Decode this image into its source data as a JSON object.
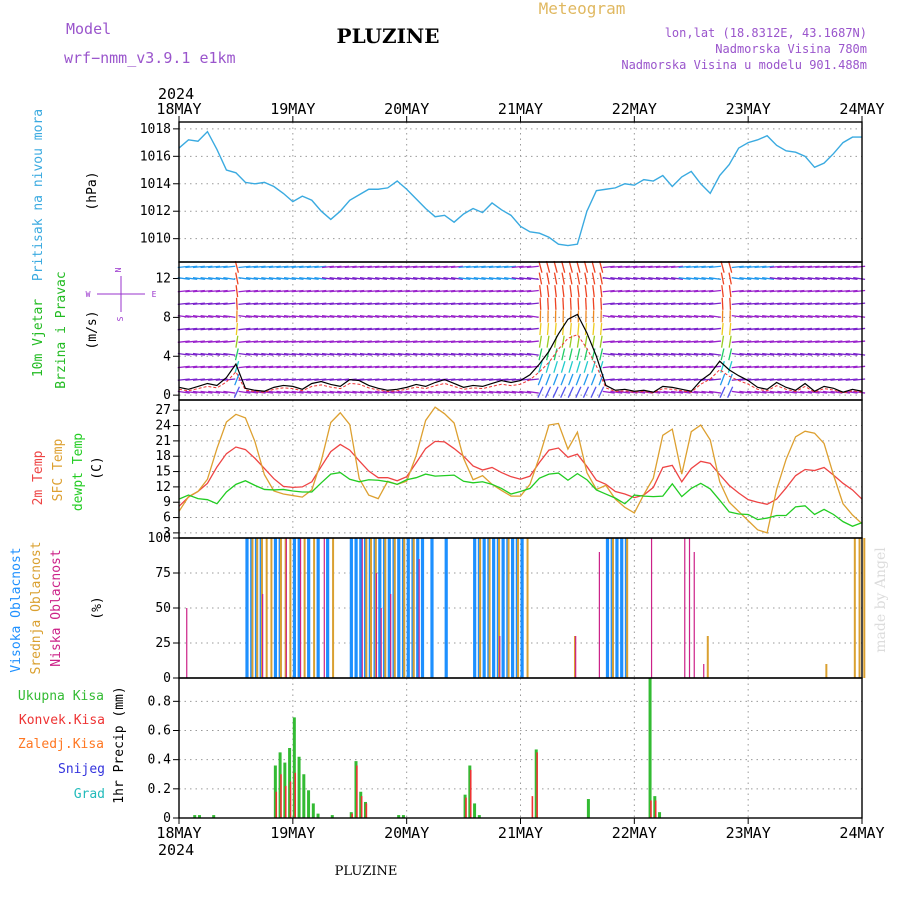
{
  "header": {
    "model_label": "Model",
    "model_name": "wrf−nmm_v3.9.1  e1km",
    "meteogram_label": "Meteogram",
    "title": "PLUZINE",
    "coords": "lon,lat (18.8312E, 43.1687N)",
    "elevation": "Nadmorska Visina 780m",
    "model_elevation": "Nadmorska Visina u modelu 901.488m",
    "footer_title": "PLUZINE",
    "credit": "made by Angel"
  },
  "time_axis": {
    "year": "2024",
    "labels": [
      "18MAY",
      "19MAY",
      "20MAY",
      "21MAY",
      "22MAY",
      "23MAY",
      "24MAY"
    ]
  },
  "colors": {
    "pressure": "#3aaae0",
    "wind_label": "#22bb22",
    "temp_2m": "#ee4444",
    "temp_sfc": "#dda030",
    "dewpoint": "#22cc22",
    "cloud_high": "#1e90ff",
    "cloud_mid": "#daa030",
    "cloud_low": "#cc2288",
    "precip_total": "#33bb33",
    "precip_conv": "#ee3333",
    "precip_frozen": "#ff7722",
    "precip_snow": "#3333dd",
    "precip_hail": "#22bbbb",
    "compass": "#9933cc"
  },
  "panels": {
    "pressure": {
      "label": "Pritisak na nivou mora",
      "unit": "(hPa)"
    },
    "wind": {
      "label1": "10m Vjetar",
      "label2": "Brzina i Pravac",
      "unit": "(m/s)",
      "compass": {
        "n": "N",
        "e": "E",
        "s": "S",
        "w": "W"
      }
    },
    "temp": {
      "label1": "2m Temp",
      "label2": "SFC Temp",
      "label3": "dewpt Temp",
      "unit": "(C)"
    },
    "cloud": {
      "label1": "Visoka Oblacnost",
      "label2": "Srednja Oblacnost",
      "label3": "Niska Oblacnost",
      "unit": "(%)"
    },
    "precip": {
      "legend": [
        "Ukupna Kisa",
        "Konvek.Kisa",
        "Zaledj.Kisa",
        "Snijeg",
        "Grad"
      ],
      "unit": "1hr Precip (mm)"
    }
  },
  "chart_data": [
    {
      "type": "line",
      "title": "Pritisak na nivou mora",
      "ylabel": "(hPa)",
      "ylim": [
        1008.3,
        1018.5
      ],
      "yticks": [
        "1010",
        "1012",
        "1014",
        "1016",
        "1018"
      ],
      "x": [
        0,
        2,
        4,
        6,
        8,
        10,
        12,
        14,
        16,
        18,
        20,
        22,
        24,
        26,
        28,
        30,
        32,
        34,
        36,
        38,
        40,
        42,
        44,
        46,
        48,
        50,
        52,
        54,
        56,
        58,
        60,
        62,
        64,
        66,
        68,
        70,
        72,
        74,
        76,
        78,
        80,
        82,
        84,
        86,
        88,
        90,
        92,
        94,
        96,
        98,
        100,
        102,
        104,
        106,
        108,
        110,
        112,
        114,
        116,
        118,
        120,
        122,
        124,
        126,
        128,
        130,
        132,
        134,
        136,
        138,
        140,
        142,
        144
      ],
      "series": [
        {
          "values": [
            1016.6,
            1017.2,
            1017.1,
            1017.8,
            1016.5,
            1015.0,
            1014.8,
            1014.1,
            1014.0,
            1014.1,
            1013.8,
            1013.3,
            1012.7,
            1013.1,
            1012.8,
            1012.0,
            1011.4,
            1012.0,
            1012.8,
            1013.2,
            1013.6,
            1013.6,
            1013.7,
            1014.2,
            1013.6,
            1012.9,
            1012.2,
            1011.6,
            1011.7,
            1011.2,
            1011.8,
            1012.2,
            1011.9,
            1012.6,
            1012.1,
            1011.7,
            1010.9,
            1010.5,
            1010.4,
            1010.1,
            1009.6,
            1009.5,
            1009.6,
            1012.0,
            1013.5,
            1013.6,
            1013.7,
            1014.0,
            1013.9,
            1014.3,
            1014.2,
            1014.6,
            1013.8,
            1014.5,
            1014.9,
            1014.0,
            1013.3,
            1014.6,
            1015.4,
            1016.6,
            1017.0,
            1017.2,
            1017.5,
            1016.8,
            1016.4,
            1016.3,
            1016.0,
            1015.2,
            1015.5,
            1016.2,
            1017.0,
            1017.4,
            1017.4
          ]
        }
      ]
    },
    {
      "type": "line",
      "title": "10m Vjetar Brzina i Pravac",
      "ylabel": "(m/s)",
      "ylim": [
        -0.5,
        13.7
      ],
      "yticks": [
        "0",
        "4",
        "8",
        "12"
      ],
      "x": [
        0,
        2,
        4,
        6,
        8,
        10,
        12,
        14,
        16,
        18,
        20,
        22,
        24,
        26,
        28,
        30,
        32,
        34,
        36,
        38,
        40,
        42,
        44,
        46,
        48,
        50,
        52,
        54,
        56,
        58,
        60,
        62,
        64,
        66,
        68,
        70,
        72,
        74,
        76,
        78,
        80,
        82,
        84,
        86,
        88,
        90,
        92,
        94,
        96,
        98,
        100,
        102,
        104,
        106,
        108,
        110,
        112,
        114,
        116,
        118,
        120,
        122,
        124,
        126,
        128,
        130,
        132,
        134,
        136,
        138,
        140,
        142,
        144
      ],
      "series": [
        {
          "name": "speed",
          "values": [
            0.8,
            0.6,
            0.9,
            1.2,
            1.0,
            1.8,
            3.2,
            0.7,
            0.5,
            0.4,
            0.8,
            1.0,
            0.9,
            0.6,
            1.2,
            1.4,
            1.1,
            0.9,
            1.6,
            1.5,
            1.0,
            0.7,
            0.5,
            0.6,
            0.8,
            1.1,
            0.9,
            1.3,
            1.6,
            1.2,
            0.8,
            1.0,
            0.9,
            1.2,
            1.5,
            1.3,
            1.5,
            2.1,
            3.2,
            4.5,
            6.3,
            7.8,
            8.3,
            6.4,
            4.0,
            1.0,
            0.5,
            0.6,
            0.4,
            0.5,
            0.3,
            0.9,
            0.8,
            0.6,
            0.4,
            1.5,
            2.2,
            3.5,
            2.6,
            2.0,
            1.5,
            0.8,
            0.6,
            1.3,
            0.8,
            0.5,
            1.2,
            0.4,
            0.9,
            0.7,
            0.3,
            0.6,
            0.4
          ]
        }
      ]
    },
    {
      "type": "line",
      "title": "2m Temp / SFC Temp / dewpt Temp",
      "ylabel": "(C)",
      "ylim": [
        2,
        29
      ],
      "yticks": [
        "3",
        "6",
        "9",
        "12",
        "15",
        "18",
        "21",
        "24",
        "27"
      ],
      "x": [
        0,
        2,
        4,
        6,
        8,
        10,
        12,
        14,
        16,
        18,
        20,
        22,
        24,
        26,
        28,
        30,
        32,
        34,
        36,
        38,
        40,
        42,
        44,
        46,
        48,
        50,
        52,
        54,
        56,
        58,
        60,
        62,
        64,
        66,
        68,
        70,
        72,
        74,
        76,
        78,
        80,
        82,
        84,
        86,
        88,
        90,
        92,
        94,
        96,
        98,
        100,
        102,
        104,
        106,
        108,
        110,
        112,
        114,
        116,
        118,
        120,
        122,
        124,
        126,
        128,
        130,
        132,
        134,
        136,
        138,
        140,
        142,
        144
      ],
      "series": [
        {
          "name": "2m Temp",
          "values": [
            8.2,
            10.0,
            11.1,
            12.7,
            15.9,
            18.5,
            19.8,
            19.3,
            17.6,
            15.6,
            13.6,
            12.1,
            11.9,
            12.0,
            13.0,
            16.0,
            18.9,
            20.3,
            19.2,
            17.1,
            15.1,
            13.8,
            13.8,
            13.2,
            14.0,
            16.7,
            19.5,
            20.9,
            20.8,
            19.5,
            18.0,
            16.1,
            15.3,
            15.8,
            14.8,
            14.0,
            13.5,
            14.1,
            16.8,
            19.2,
            19.6,
            17.8,
            18.4,
            16.0,
            13.3,
            12.5,
            11.1,
            10.6,
            9.9,
            10.4,
            11.9,
            15.8,
            16.2,
            13.0,
            15.6,
            17.0,
            16.6,
            14.4,
            12.3,
            10.8,
            9.5,
            9.0,
            8.6,
            9.6,
            11.8,
            14.2,
            15.4,
            15.2,
            15.8,
            14.3,
            12.7,
            11.4,
            9.6
          ]
        },
        {
          "name": "SFC Temp",
          "values": [
            7.2,
            10.1,
            11.1,
            13.5,
            19.5,
            24.7,
            26.2,
            25.5,
            20.9,
            14.4,
            11.2,
            10.6,
            10.3,
            10.0,
            11.4,
            17.1,
            24.6,
            26.5,
            24.2,
            13.6,
            10.4,
            9.7,
            13.1,
            12.5,
            13.1,
            18.1,
            25.0,
            27.6,
            26.3,
            24.5,
            17.6,
            13.4,
            14.2,
            12.5,
            11.3,
            10.2,
            10.2,
            12.5,
            17.9,
            24.1,
            24.4,
            19.4,
            22.7,
            14.8,
            11.5,
            12.3,
            9.6,
            8.0,
            6.9,
            10.5,
            13.7,
            22.1,
            23.3,
            14.5,
            22.8,
            24.1,
            21.2,
            13.0,
            9.0,
            7.2,
            5.4,
            3.6,
            3.0,
            11.5,
            17.4,
            21.8,
            22.9,
            22.5,
            20.5,
            14.3,
            8.7,
            6.5,
            4.8
          ]
        },
        {
          "name": "dewpt Temp",
          "values": [
            9.6,
            10.4,
            9.7,
            9.5,
            8.7,
            11.0,
            12.5,
            13.2,
            12.3,
            11.5,
            11.4,
            11.5,
            11.2,
            11.0,
            11.0,
            12.8,
            14.5,
            14.8,
            13.5,
            13.0,
            13.4,
            13.3,
            13.0,
            12.5,
            13.4,
            13.8,
            14.5,
            14.1,
            14.2,
            14.3,
            13.1,
            12.8,
            13.0,
            12.5,
            11.7,
            10.6,
            11.1,
            11.7,
            13.7,
            14.5,
            14.7,
            13.3,
            14.6,
            13.4,
            11.4,
            10.6,
            9.8,
            8.7,
            10.4,
            10.2,
            10.1,
            10.2,
            12.6,
            10.1,
            11.7,
            12.7,
            11.6,
            9.4,
            7.1,
            6.7,
            6.6,
            5.6,
            5.9,
            6.4,
            6.4,
            8.1,
            8.3,
            6.6,
            7.6,
            6.6,
            5.2,
            4.3,
            5.0
          ]
        }
      ]
    },
    {
      "type": "bar",
      "title": "Visoka / Srednja / Niska Oblacnost",
      "ylabel": "(%)",
      "ylim": [
        0,
        100
      ],
      "yticks": [
        "0",
        "25",
        "50",
        "75",
        "100"
      ],
      "series": [
        {
          "name": "Visoka Oblacnost",
          "x": [
            14,
            15,
            16,
            17,
            20,
            21,
            24,
            25,
            27,
            29,
            31,
            36,
            37,
            38,
            39,
            40,
            41,
            42,
            43,
            44,
            45,
            46,
            47,
            48,
            49,
            50,
            51,
            53,
            56,
            62,
            63,
            64,
            65,
            66,
            67,
            68,
            69,
            70,
            71,
            72,
            90,
            91,
            92,
            93,
            94
          ],
          "values": [
            100,
            100,
            100,
            100,
            100,
            100,
            100,
            100,
            100,
            100,
            100,
            100,
            100,
            100,
            100,
            100,
            100,
            100,
            100,
            100,
            100,
            100,
            100,
            100,
            100,
            100,
            100,
            100,
            100,
            100,
            100,
            100,
            100,
            100,
            100,
            100,
            100,
            100,
            100,
            100,
            100,
            100,
            100,
            100,
            100
          ]
        },
        {
          "name": "Srednja Oblacnost",
          "x": [
            15,
            16,
            17,
            18,
            19,
            21,
            22,
            23,
            26,
            28,
            32,
            39,
            40,
            41,
            43,
            45,
            47,
            49,
            63,
            65,
            67,
            69,
            71,
            73,
            83,
            91,
            94,
            111,
            136,
            142,
            143,
            144
          ],
          "values": [
            100,
            100,
            100,
            100,
            100,
            100,
            100,
            100,
            100,
            100,
            100,
            100,
            100,
            100,
            100,
            100,
            100,
            100,
            100,
            100,
            100,
            100,
            100,
            100,
            30,
            100,
            100,
            30,
            10,
            100,
            100,
            100
          ]
        },
        {
          "name": "Niska Oblacnost",
          "x": [
            1,
            17,
            22,
            25,
            30,
            38,
            41,
            42,
            44,
            50,
            67,
            83,
            88,
            99,
            106,
            107,
            108,
            110
          ],
          "values": [
            50,
            60,
            100,
            100,
            100,
            100,
            75,
            50,
            60,
            85,
            30,
            30,
            90,
            100,
            100,
            100,
            90,
            10
          ]
        }
      ]
    },
    {
      "type": "bar",
      "title": "1hr Precip",
      "ylabel": "1hr Precip (mm)",
      "ylim": [
        0,
        0.96
      ],
      "yticks": [
        "0",
        "0.2",
        "0.4",
        "0.6",
        "0.8"
      ],
      "series": [
        {
          "name": "Ukupna Kisa",
          "x": [
            3,
            4,
            7,
            20,
            21,
            22,
            23,
            24,
            25,
            26,
            27,
            28,
            29,
            32,
            36,
            37,
            38,
            39,
            46,
            47,
            60,
            61,
            62,
            63,
            75,
            86,
            99,
            100,
            101
          ],
          "values": [
            0.02,
            0.02,
            0.02,
            0.36,
            0.45,
            0.38,
            0.48,
            0.69,
            0.42,
            0.3,
            0.19,
            0.1,
            0.03,
            0.02,
            0.04,
            0.39,
            0.18,
            0.11,
            0.02,
            0.02,
            0.16,
            0.36,
            0.1,
            0.02,
            0.47,
            0.13,
            0.96,
            0.15,
            0.04
          ]
        },
        {
          "name": "Konvek.Kisa",
          "x": [
            20,
            21,
            22,
            23,
            24,
            36,
            37,
            38,
            39,
            60,
            61,
            74,
            75,
            99,
            100
          ],
          "values": [
            0.18,
            0.3,
            0.22,
            0.25,
            0.31,
            0.03,
            0.36,
            0.15,
            0.1,
            0.14,
            0.33,
            0.15,
            0.45,
            0.12,
            0.12
          ]
        }
      ]
    }
  ]
}
